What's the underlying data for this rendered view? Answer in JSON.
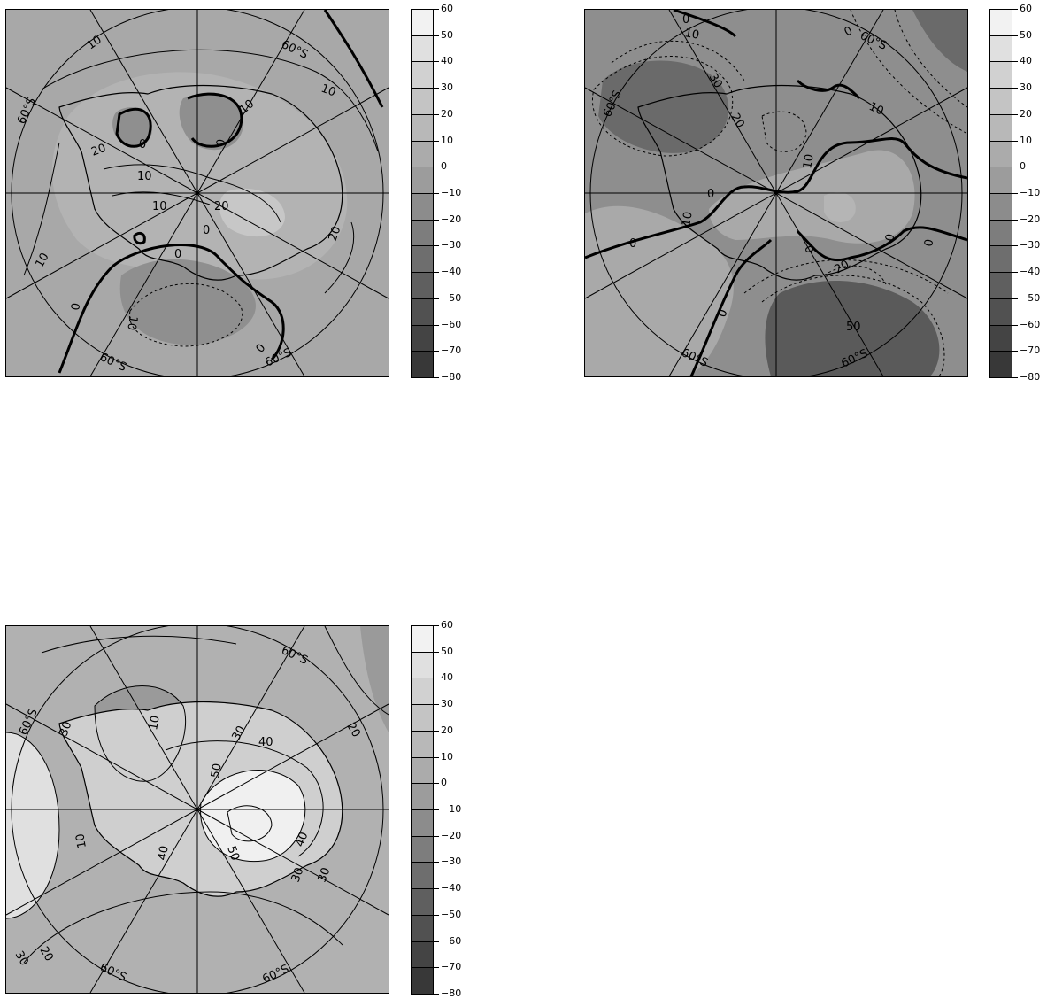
{
  "colorbar": {
    "levels": [
      "60",
      "50",
      "40",
      "30",
      "20",
      "10",
      "0",
      "−10",
      "−20",
      "−30",
      "−40",
      "−50",
      "−60",
      "−70",
      "−80"
    ],
    "band_colors": [
      "#f2f2f2",
      "#e0e0e0",
      "#d1d1d1",
      "#c4c4c4",
      "#b8b8b8",
      "#ababab",
      "#9c9c9c",
      "#8c8c8c",
      "#7d7d7d",
      "#6e6e6e",
      "#5f5f5f",
      "#515151",
      "#444444",
      "#383838"
    ]
  },
  "panels": [
    {
      "id": "top-left",
      "background": "#a8a8a8",
      "region_fills": [
        "#b3b3b3",
        "#8f8f8f",
        "#c7c7c7"
      ],
      "latitude_label": "60°S",
      "contour_labels": [
        "10",
        "10",
        "10",
        "10",
        "0",
        "0",
        "20",
        "10",
        "20",
        "10",
        "20",
        "0",
        "0",
        "10",
        "0",
        "0"
      ]
    },
    {
      "id": "top-right",
      "background": "#8e8e8e",
      "region_fills": [
        "#a9a9a9",
        "#6a6a6a",
        "#5a5a5a",
        "#b5b5b5"
      ],
      "latitude_label": "60°S",
      "contour_labels": [
        "0",
        "10",
        "30",
        "20",
        "0",
        "10",
        "10",
        "0",
        "0",
        "10",
        "0",
        "0",
        "20",
        "50",
        "0",
        "0"
      ]
    },
    {
      "id": "bottom-left",
      "background": "#b1b1b1",
      "region_fills": [
        "#e0e0e0",
        "#9a9a9a",
        "#cfcfcf",
        "#f0f0f0"
      ],
      "latitude_label": "60°S",
      "contour_labels": [
        "30",
        "10",
        "30",
        "40",
        "50",
        "20",
        "40",
        "50",
        "30",
        "30",
        "10",
        "40",
        "30",
        "20"
      ]
    }
  ]
}
